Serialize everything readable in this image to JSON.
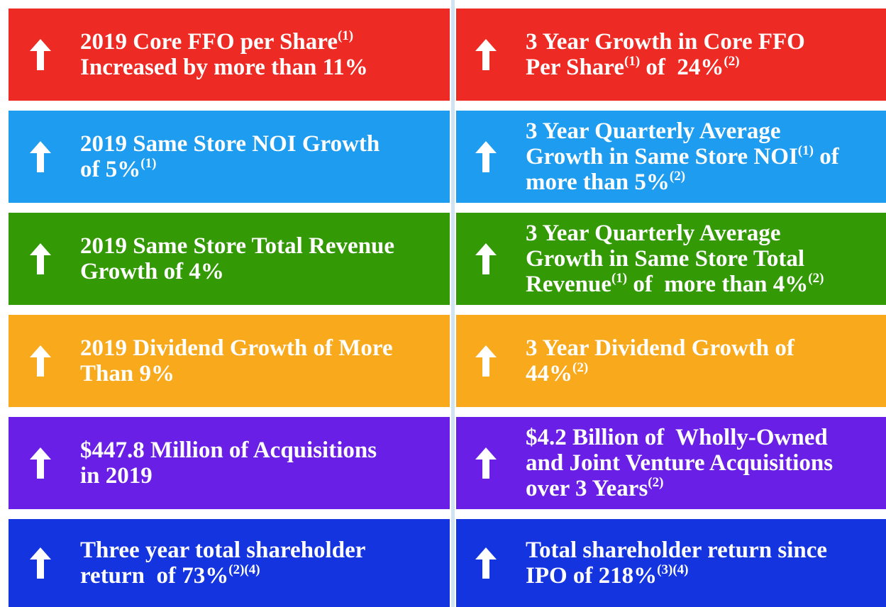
{
  "rows": [
    {
      "color": "#ee2a24",
      "left": {
        "lines": [
          [
            {
              "text": "2019 Core FFO per Share"
            },
            {
              "sup": "(1)"
            }
          ],
          [
            {
              "text": "Increased by more than 11%"
            }
          ]
        ]
      },
      "right": {
        "lines": [
          [
            {
              "text": "3 Year Growth in Core FFO"
            }
          ],
          [
            {
              "text": "Per Share"
            },
            {
              "sup": "(1)"
            },
            {
              "text": " of  24%"
            },
            {
              "sup": "(2)"
            }
          ]
        ]
      }
    },
    {
      "color": "#1e9cf0",
      "left": {
        "lines": [
          [
            {
              "text": "2019 Same Store NOI Growth"
            }
          ],
          [
            {
              "text": "of 5%"
            },
            {
              "sup": "(1)"
            }
          ]
        ]
      },
      "right": {
        "lines": [
          [
            {
              "text": "3 Year Quarterly Average"
            }
          ],
          [
            {
              "text": "Growth in Same Store NOI"
            },
            {
              "sup": "(1)"
            },
            {
              "text": " of"
            }
          ],
          [
            {
              "text": "more than 5%"
            },
            {
              "sup": "(2)"
            }
          ]
        ]
      }
    },
    {
      "color": "#339a06",
      "left": {
        "lines": [
          [
            {
              "text": "2019 Same Store Total Revenue"
            }
          ],
          [
            {
              "text": "Growth of 4%"
            }
          ]
        ]
      },
      "right": {
        "lines": [
          [
            {
              "text": "3 Year Quarterly Average"
            }
          ],
          [
            {
              "text": "Growth in Same Store Total"
            }
          ],
          [
            {
              "text": "Revenue"
            },
            {
              "sup": "(1)"
            },
            {
              "text": " of  more than 4%"
            },
            {
              "sup": "(2)"
            }
          ]
        ]
      }
    },
    {
      "color": "#f8a91c",
      "left": {
        "lines": [
          [
            {
              "text": "2019 Dividend Growth of More"
            }
          ],
          [
            {
              "text": "Than 9%"
            }
          ]
        ]
      },
      "right": {
        "lines": [
          [
            {
              "text": "3 Year Dividend Growth of"
            }
          ],
          [
            {
              "text": "44%"
            },
            {
              "sup": "(2)"
            }
          ]
        ]
      }
    },
    {
      "color": "#6a1fe6",
      "left": {
        "lines": [
          [
            {
              "text": "$447.8 Million of Acquisitions"
            }
          ],
          [
            {
              "text": "in 2019"
            }
          ]
        ]
      },
      "right": {
        "lines": [
          [
            {
              "text": "$4.2 Billion of  Wholly-Owned"
            }
          ],
          [
            {
              "text": "and Joint Venture Acquisitions"
            }
          ],
          [
            {
              "text": "over 3 Years"
            },
            {
              "sup": "(2)"
            }
          ]
        ]
      }
    },
    {
      "color": "#1434e0",
      "left": {
        "lines": [
          [
            {
              "text": "Three year total shareholder"
            }
          ],
          [
            {
              "text": "return  of 73%"
            },
            {
              "sup": "(2)(4)"
            }
          ]
        ]
      },
      "right": {
        "lines": [
          [
            {
              "text": "Total shareholder return since"
            }
          ],
          [
            {
              "text": "IPO of 218%"
            },
            {
              "sup": "(3)(4)"
            }
          ]
        ]
      }
    }
  ]
}
